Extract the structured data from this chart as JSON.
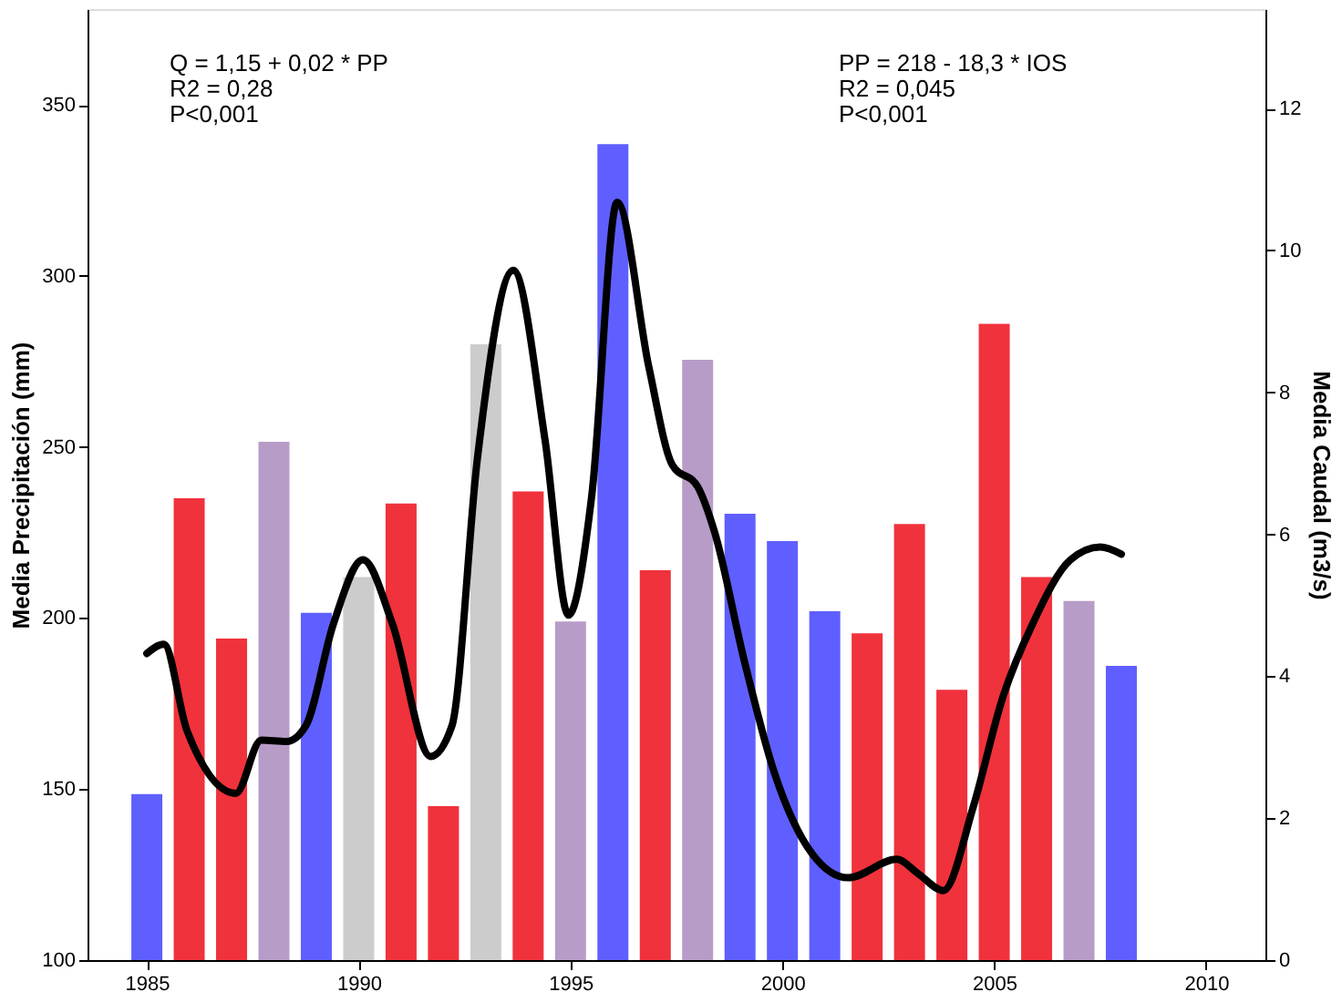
{
  "chart_data": {
    "type": "bar",
    "ylabel": "Media Precipitación (mm)",
    "y2label": "Media Caudal (m3/s)",
    "xlim": [
      1983.6,
      2011.4
    ],
    "xticks": [
      1985,
      1990,
      1995,
      2000,
      2005,
      2010
    ],
    "ylim": [
      100,
      378
    ],
    "yticks": [
      100,
      150,
      200,
      250,
      300,
      350
    ],
    "y2lim": [
      0,
      13.4
    ],
    "y2ticks": [
      0,
      2,
      4,
      6,
      8,
      10,
      12
    ],
    "grid": false,
    "marker": "none",
    "line_style": "solid",
    "annotations": [
      "Q = 1,15 + 0,02 * PP\nR2 = 0,28\nP<0,001",
      "PP = 218 - 18,3 * IOS\nR2 = 0,045\nP<0,001"
    ],
    "series": [
      {
        "x": [
          1985,
          1986,
          1987,
          1988,
          1989,
          1990,
          1991,
          1992,
          1993,
          1994,
          1995,
          1996,
          1997,
          1998,
          1999,
          2000,
          2001,
          2002,
          2003,
          2004,
          2005,
          2006,
          2007,
          2008
        ],
        "values": [
          148.5,
          235,
          194,
          251.5,
          201.5,
          212,
          233.5,
          145,
          280,
          237,
          199,
          338.5,
          214,
          275.5,
          230.5,
          222.5,
          202,
          195.5,
          227.5,
          179,
          286,
          212,
          205,
          186
        ],
        "colors": [
          "#5f5fff",
          "#f0323c",
          "#f0323c",
          "#b89cc8",
          "#5f5fff",
          "#cccccc",
          "#f0323c",
          "#f0323c",
          "#cccccc",
          "#f0323c",
          "#b89cc8",
          "#5f5fff",
          "#f0323c",
          "#b89cc8",
          "#5f5fff",
          "#5f5fff",
          "#5f5fff",
          "#f0323c",
          "#f0323c",
          "#f0323c",
          "#f0323c",
          "#f0323c",
          "#b89cc8",
          "#5f5fff"
        ]
      },
      {
        "type": "line",
        "axis": "y2",
        "color": "#000000",
        "x": [
          1985,
          1985.4,
          1985.95,
          1987.1,
          1987.7,
          1988.3,
          1988.75,
          1989.4,
          1990.1,
          1990.8,
          1991.7,
          1992.2,
          1992.8,
          1993.65,
          1994.4,
          1994.95,
          1995.5,
          1996.1,
          1996.85,
          1997.4,
          1998,
          1998.4,
          1999.1,
          1999.8,
          2000.7,
          2001.55,
          2002.7,
          2003.2,
          2003.8,
          2004.5,
          2005.2,
          2005.9,
          2006.8,
          2007.5,
          2008
        ],
        "values": [
          4.32,
          4.45,
          3.23,
          2.35,
          3.1,
          3.08,
          3.3,
          4.73,
          5.64,
          4.73,
          2.87,
          3.3,
          7.06,
          9.72,
          7.32,
          4.86,
          6.54,
          10.68,
          8.35,
          6.98,
          6.67,
          6.03,
          4.22,
          2.66,
          1.5,
          1.16,
          1.42,
          1.22,
          0.98,
          2.15,
          3.7,
          4.73,
          5.64,
          5.82,
          5.72
        ]
      }
    ]
  }
}
